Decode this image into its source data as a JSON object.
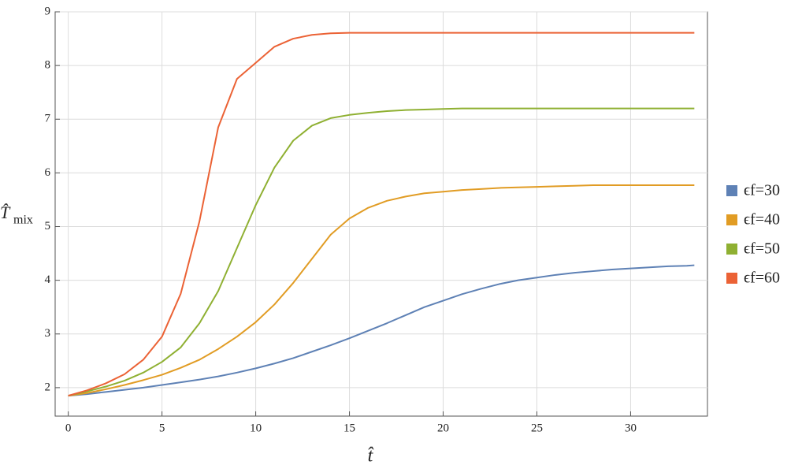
{
  "chart_data": {
    "type": "line",
    "x_label": "t̂",
    "y_label": "T̂",
    "y_label_sub": "mix",
    "x": [
      0,
      1,
      2,
      3,
      4,
      5,
      6,
      7,
      8,
      9,
      10,
      11,
      12,
      13,
      14,
      15,
      16,
      17,
      18,
      19,
      20,
      21,
      22,
      23,
      24,
      25,
      26,
      27,
      28,
      29,
      30,
      31,
      32,
      33,
      33.4
    ],
    "series": [
      {
        "name": "ϵf=30",
        "color": "#5e81b5",
        "values": [
          1.85,
          1.88,
          1.92,
          1.96,
          2.0,
          2.05,
          2.1,
          2.15,
          2.21,
          2.28,
          2.36,
          2.45,
          2.55,
          2.67,
          2.79,
          2.92,
          3.06,
          3.2,
          3.35,
          3.5,
          3.62,
          3.74,
          3.84,
          3.93,
          4.0,
          4.05,
          4.1,
          4.14,
          4.17,
          4.2,
          4.22,
          4.24,
          4.26,
          4.27,
          4.28
        ]
      },
      {
        "name": "ϵf=40",
        "color": "#e19c24",
        "values": [
          1.85,
          1.9,
          1.97,
          2.05,
          2.14,
          2.24,
          2.37,
          2.52,
          2.72,
          2.95,
          3.22,
          3.55,
          3.95,
          4.4,
          4.85,
          5.15,
          5.35,
          5.48,
          5.56,
          5.62,
          5.65,
          5.68,
          5.7,
          5.72,
          5.73,
          5.74,
          5.75,
          5.76,
          5.77,
          5.77,
          5.77,
          5.77,
          5.77,
          5.77,
          5.77
        ]
      },
      {
        "name": "ϵf=50",
        "color": "#8fb032",
        "values": [
          1.85,
          1.93,
          2.02,
          2.13,
          2.28,
          2.48,
          2.75,
          3.2,
          3.8,
          4.6,
          5.4,
          6.1,
          6.6,
          6.88,
          7.02,
          7.08,
          7.12,
          7.15,
          7.17,
          7.18,
          7.19,
          7.2,
          7.2,
          7.2,
          7.2,
          7.2,
          7.2,
          7.2,
          7.2,
          7.2,
          7.2,
          7.2,
          7.2,
          7.2,
          7.2
        ]
      },
      {
        "name": "ϵf=60",
        "color": "#eb6235",
        "values": [
          1.85,
          1.95,
          2.08,
          2.25,
          2.52,
          2.95,
          3.75,
          5.1,
          6.85,
          7.75,
          8.05,
          8.35,
          8.5,
          8.57,
          8.6,
          8.61,
          8.61,
          8.61,
          8.61,
          8.61,
          8.61,
          8.61,
          8.61,
          8.61,
          8.61,
          8.61,
          8.61,
          8.61,
          8.61,
          8.61,
          8.61,
          8.61,
          8.61,
          8.61,
          8.61
        ]
      }
    ],
    "xlim": [
      -0.7,
      34.1
    ],
    "ylim": [
      1.47,
      9
    ],
    "xticks": [
      0,
      5,
      10,
      15,
      20,
      25,
      30
    ],
    "yticks": [
      2,
      3,
      4,
      5,
      6,
      7,
      8,
      9
    ],
    "grid": true,
    "legend": "right"
  }
}
